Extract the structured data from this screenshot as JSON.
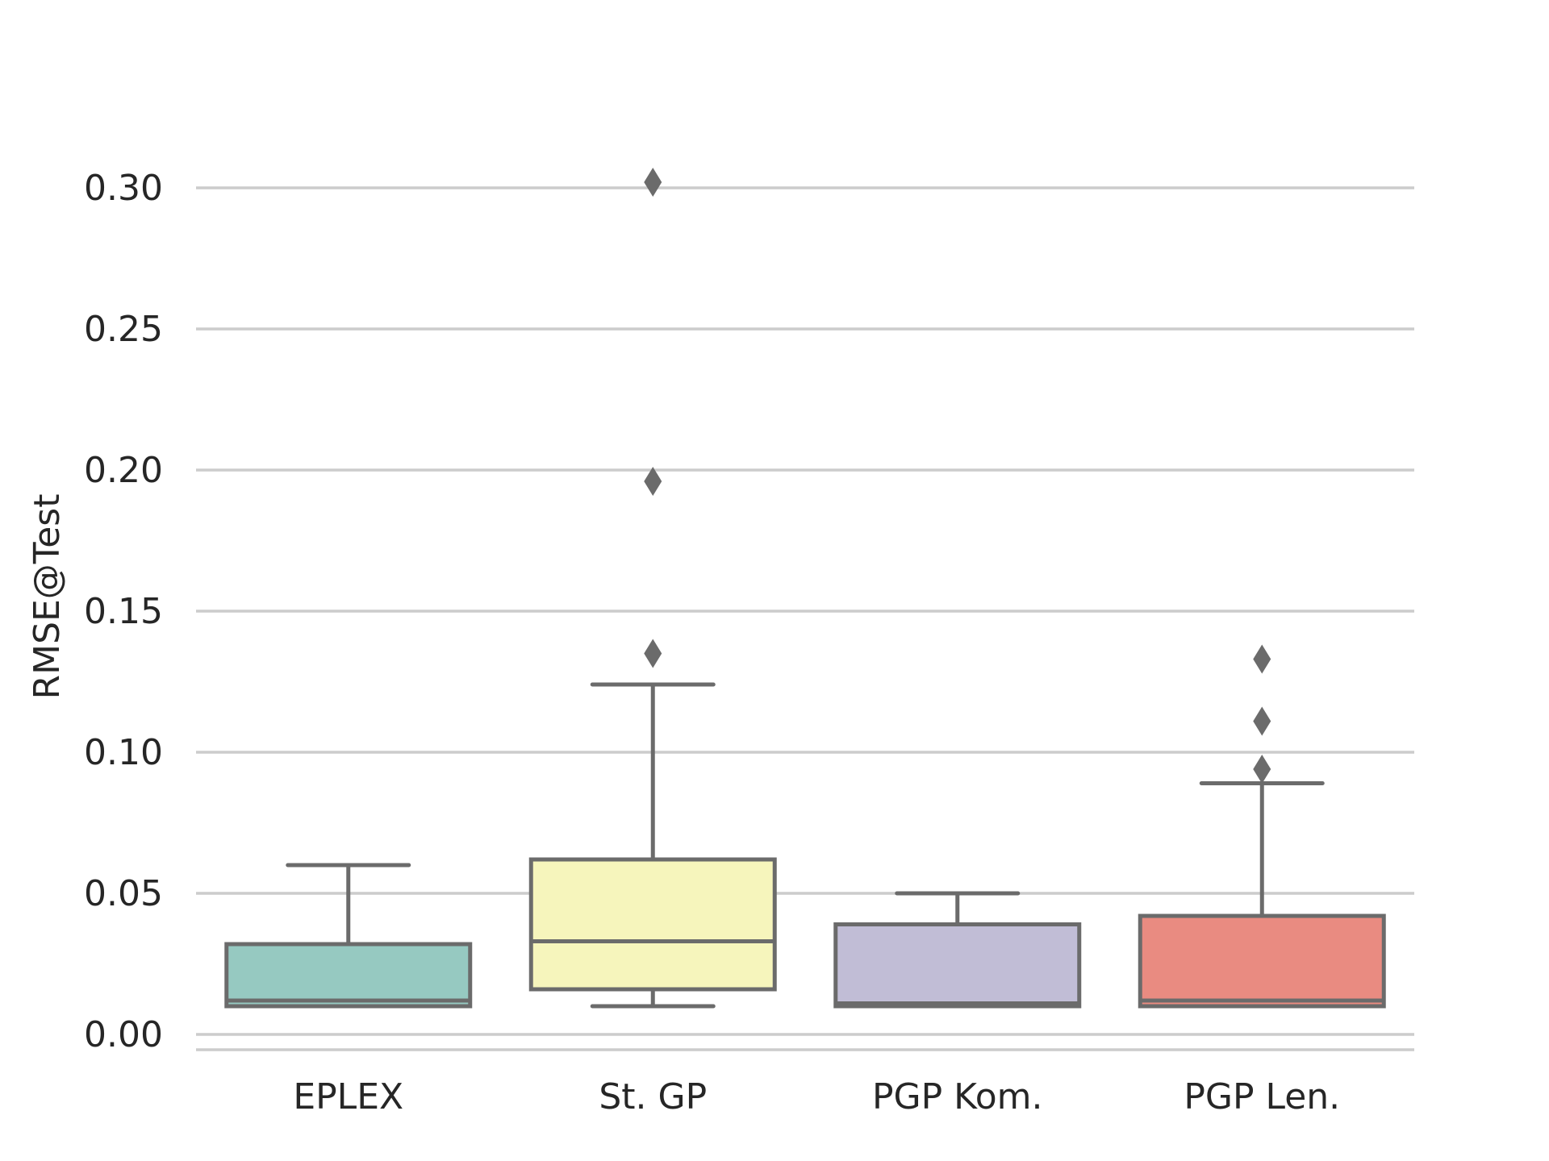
{
  "chart_data": {
    "type": "box",
    "ylabel": "RMSE@Test",
    "ylim": [
      -0.005,
      0.32
    ],
    "yticks": [
      "0.00",
      "0.05",
      "0.10",
      "0.15",
      "0.20",
      "0.25",
      "0.30"
    ],
    "grid": "horizontal",
    "categories": [
      "EPLEX",
      "St. GP",
      "PGP Kom.",
      "PGP Len."
    ],
    "series": [
      {
        "category": "EPLEX",
        "color": "#96c9c1",
        "whisker_low": 0.01,
        "q1": 0.01,
        "median": 0.012,
        "q3": 0.032,
        "whisker_high": 0.06,
        "outliers": []
      },
      {
        "category": "St. GP",
        "color": "#f6f5bc",
        "whisker_low": 0.01,
        "q1": 0.016,
        "median": 0.033,
        "q3": 0.062,
        "whisker_high": 0.124,
        "outliers": [
          0.135,
          0.196,
          0.302
        ]
      },
      {
        "category": "PGP Kom.",
        "color": "#c1bdd6",
        "whisker_low": 0.01,
        "q1": 0.01,
        "median": 0.011,
        "q3": 0.039,
        "whisker_high": 0.05,
        "outliers": []
      },
      {
        "category": "PGP Len.",
        "color": "#e98b81",
        "whisker_low": 0.01,
        "q1": 0.01,
        "median": 0.012,
        "q3": 0.042,
        "whisker_high": 0.089,
        "outliers": [
          0.094,
          0.111,
          0.133
        ]
      }
    ]
  }
}
